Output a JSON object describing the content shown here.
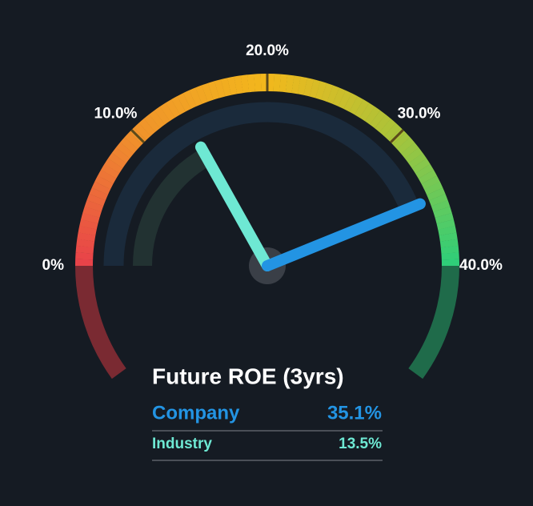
{
  "chart_data": {
    "type": "gauge",
    "title": "Future ROE (3yrs)",
    "xlim": [
      0,
      40
    ],
    "xticks": [
      {
        "value": 0,
        "label": "0%"
      },
      {
        "value": 10,
        "label": "10.0%"
      },
      {
        "value": 20,
        "label": "20.0%"
      },
      {
        "value": 30,
        "label": "30.0%"
      },
      {
        "value": 40,
        "label": "40.0%"
      }
    ],
    "series": [
      {
        "name": "Company",
        "color": "#2394e3",
        "values": [
          35.1
        ],
        "value_labels": [
          "35.1%"
        ]
      },
      {
        "name": "Industry",
        "color": "#6ee8d3",
        "values": [
          13.5
        ],
        "value_labels": [
          "13.5%"
        ]
      }
    ]
  }
}
